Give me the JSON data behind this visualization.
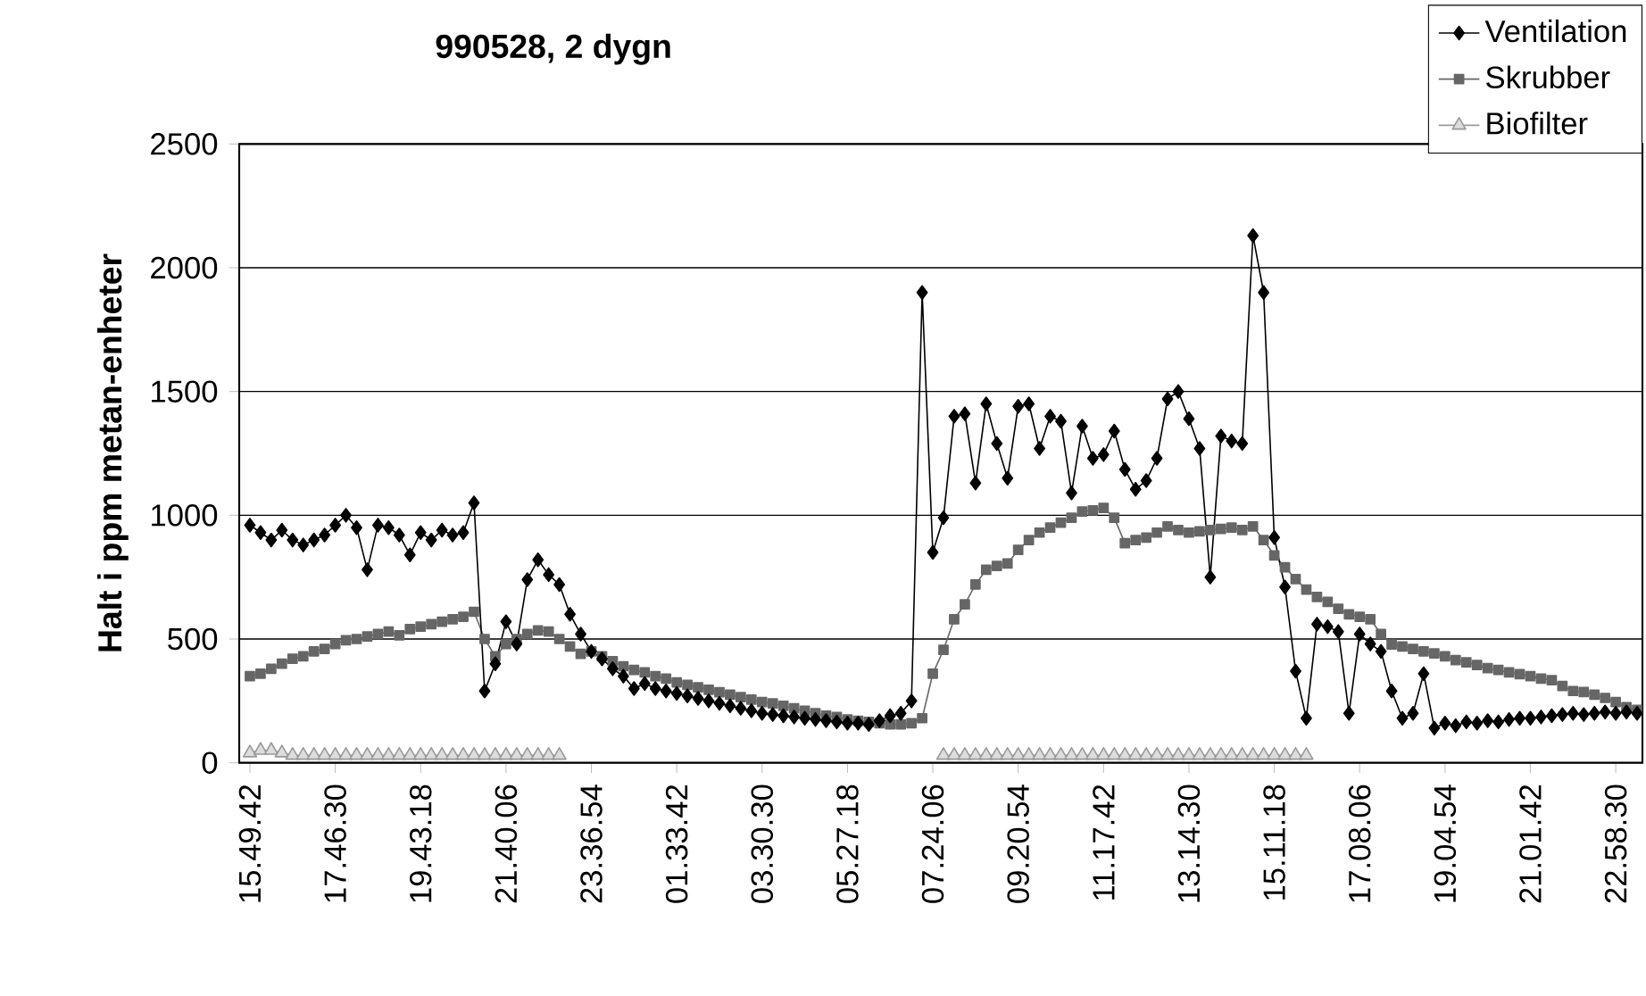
{
  "chart_data": {
    "type": "line",
    "title": "990528, 2 dygn",
    "ylabel": "Halt i ppm metan-enheter",
    "categories": [
      "15.49.42",
      null,
      null,
      null,
      null,
      null,
      null,
      null,
      "17.46.30",
      null,
      null,
      null,
      null,
      null,
      null,
      null,
      "19.43.18",
      null,
      null,
      null,
      null,
      null,
      null,
      null,
      "21.40.06",
      null,
      null,
      null,
      null,
      null,
      null,
      null,
      "23.36.54",
      null,
      null,
      null,
      null,
      null,
      null,
      null,
      "01.33.42",
      null,
      null,
      null,
      null,
      null,
      null,
      null,
      "03.30.30",
      null,
      null,
      null,
      null,
      null,
      null,
      null,
      "05.27.18",
      null,
      null,
      null,
      null,
      null,
      null,
      null,
      "07.24.06",
      null,
      null,
      null,
      null,
      null,
      null,
      null,
      "09.20.54",
      null,
      null,
      null,
      null,
      null,
      null,
      null,
      "11.17.42",
      null,
      null,
      null,
      null,
      null,
      null,
      null,
      "13.14.30",
      null,
      null,
      null,
      null,
      null,
      null,
      null,
      "15.11.18",
      null,
      null,
      null,
      null,
      null,
      null,
      null,
      "17.08.06",
      null,
      null,
      null,
      null,
      null,
      null,
      null,
      "19.04.54",
      null,
      null,
      null,
      null,
      null,
      null,
      null,
      "21.01.42",
      null,
      null,
      null,
      null,
      null,
      null,
      null,
      "22.58.30",
      null,
      null
    ],
    "series": [
      {
        "name": "Ventilation",
        "color": "#000000",
        "marker": "diamond",
        "values": [
          960,
          930,
          900,
          940,
          900,
          880,
          900,
          920,
          960,
          1000,
          950,
          780,
          960,
          950,
          920,
          840,
          930,
          900,
          940,
          920,
          930,
          1050,
          290,
          400,
          570,
          480,
          740,
          820,
          760,
          720,
          600,
          520,
          450,
          420,
          380,
          350,
          300,
          320,
          300,
          290,
          280,
          270,
          260,
          250,
          240,
          230,
          220,
          210,
          200,
          195,
          190,
          185,
          180,
          175,
          170,
          165,
          160,
          160,
          155,
          170,
          190,
          200,
          250,
          1900,
          850,
          990,
          1400,
          1410,
          1130,
          1450,
          1290,
          1150,
          1440,
          1450,
          1270,
          1400,
          1380,
          1090,
          1360,
          1230,
          1245,
          1340,
          1185,
          1105,
          1140,
          1230,
          1470,
          1500,
          1390,
          1270,
          750,
          1320,
          1300,
          1290,
          2130,
          1900,
          910,
          710,
          370,
          180,
          560,
          550,
          530,
          200,
          520,
          480,
          450,
          290,
          180,
          200,
          360,
          140,
          160,
          150,
          165,
          160,
          170,
          165,
          175,
          180,
          180,
          185,
          190,
          195,
          200,
          195,
          200,
          205,
          200,
          205,
          200
        ]
      },
      {
        "name": "Skrubber",
        "color": "#666666",
        "marker": "square",
        "values": [
          350,
          360,
          380,
          400,
          420,
          430,
          450,
          460,
          480,
          495,
          500,
          510,
          520,
          530,
          515,
          540,
          550,
          560,
          570,
          580,
          590,
          610,
          500,
          430,
          480,
          500,
          520,
          535,
          530,
          500,
          470,
          440,
          450,
          430,
          410,
          390,
          375,
          365,
          350,
          340,
          325,
          315,
          305,
          295,
          285,
          275,
          265,
          255,
          245,
          240,
          230,
          220,
          210,
          200,
          190,
          185,
          175,
          170,
          165,
          160,
          155,
          155,
          160,
          180,
          360,
          456,
          580,
          640,
          720,
          780,
          795,
          805,
          860,
          900,
          930,
          950,
          970,
          990,
          1015,
          1020,
          1030,
          990,
          887,
          900,
          910,
          930,
          955,
          940,
          930,
          935,
          940,
          945,
          950,
          940,
          955,
          900,
          838,
          790,
          742,
          700,
          670,
          650,
          622,
          600,
          590,
          580,
          520,
          478,
          470,
          460,
          450,
          442,
          430,
          415,
          406,
          395,
          382,
          375,
          365,
          358,
          350,
          340,
          334,
          310,
          290,
          286,
          275,
          262,
          245,
          225,
          214
        ]
      },
      {
        "name": "Biofilter",
        "color": "#999999",
        "marker": "triangle",
        "values": [
          40,
          50,
          50,
          40,
          30,
          30,
          30,
          30,
          30,
          30,
          30,
          30,
          30,
          30,
          30,
          30,
          30,
          30,
          30,
          30,
          30,
          30,
          30,
          30,
          30,
          30,
          30,
          30,
          30,
          30,
          null,
          null,
          null,
          null,
          null,
          null,
          null,
          null,
          null,
          null,
          null,
          null,
          null,
          null,
          null,
          null,
          null,
          null,
          null,
          null,
          null,
          null,
          null,
          null,
          null,
          null,
          null,
          null,
          null,
          null,
          null,
          null,
          null,
          null,
          null,
          30,
          30,
          30,
          30,
          30,
          30,
          30,
          30,
          30,
          30,
          30,
          30,
          30,
          30,
          30,
          30,
          30,
          30,
          30,
          30,
          30,
          30,
          30,
          30,
          30,
          30,
          30,
          30,
          30,
          30,
          30,
          30,
          30,
          30,
          30,
          null,
          null,
          null,
          null,
          null,
          null,
          null,
          null,
          null,
          null,
          null,
          null,
          null,
          null,
          null,
          null,
          null,
          null,
          null,
          null,
          null,
          null,
          null,
          null,
          null,
          null,
          null,
          null,
          null,
          null,
          null
        ]
      }
    ],
    "ylim": [
      0,
      2500
    ],
    "yticks": [
      0,
      500,
      1000,
      1500,
      2000,
      2500
    ],
    "grid": "y",
    "legend": "top right",
    "line_style": "solid"
  }
}
